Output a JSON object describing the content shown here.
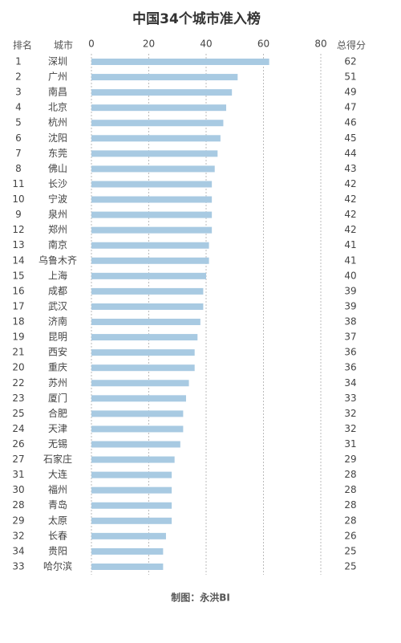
{
  "chart_data": {
    "type": "bar",
    "title": "中国34个城市准入榜",
    "rank_header": "排名",
    "category_header": "城市",
    "value_header": "总得分",
    "source": "制图：永洪BI",
    "ranks": [
      1,
      2,
      3,
      4,
      5,
      6,
      7,
      8,
      11,
      10,
      9,
      12,
      13,
      14,
      15,
      16,
      17,
      18,
      19,
      21,
      20,
      22,
      23,
      25,
      24,
      26,
      27,
      31,
      30,
      28,
      29,
      32,
      34,
      33
    ],
    "categories": [
      "深圳",
      "广州",
      "南昌",
      "北京",
      "杭州",
      "沈阳",
      "东莞",
      "佛山",
      "长沙",
      "宁波",
      "泉州",
      "郑州",
      "南京",
      "乌鲁木齐",
      "上海",
      "成都",
      "武汉",
      "济南",
      "昆明",
      "西安",
      "重庆",
      "苏州",
      "厦门",
      "合肥",
      "天津",
      "无锡",
      "石家庄",
      "大连",
      "福州",
      "青岛",
      "太原",
      "长春",
      "贵阳",
      "哈尔滨"
    ],
    "values": [
      62,
      51,
      49,
      47,
      46,
      45,
      44,
      43,
      42,
      42,
      42,
      42,
      41,
      41,
      40,
      39,
      39,
      38,
      37,
      36,
      36,
      34,
      33,
      32,
      32,
      31,
      29,
      28,
      28,
      28,
      28,
      26,
      25,
      25
    ],
    "color": "#a8cae2",
    "xlim": [
      0,
      80
    ],
    "xticks": [
      0,
      20,
      40,
      60,
      80
    ],
    "grid": true
  }
}
